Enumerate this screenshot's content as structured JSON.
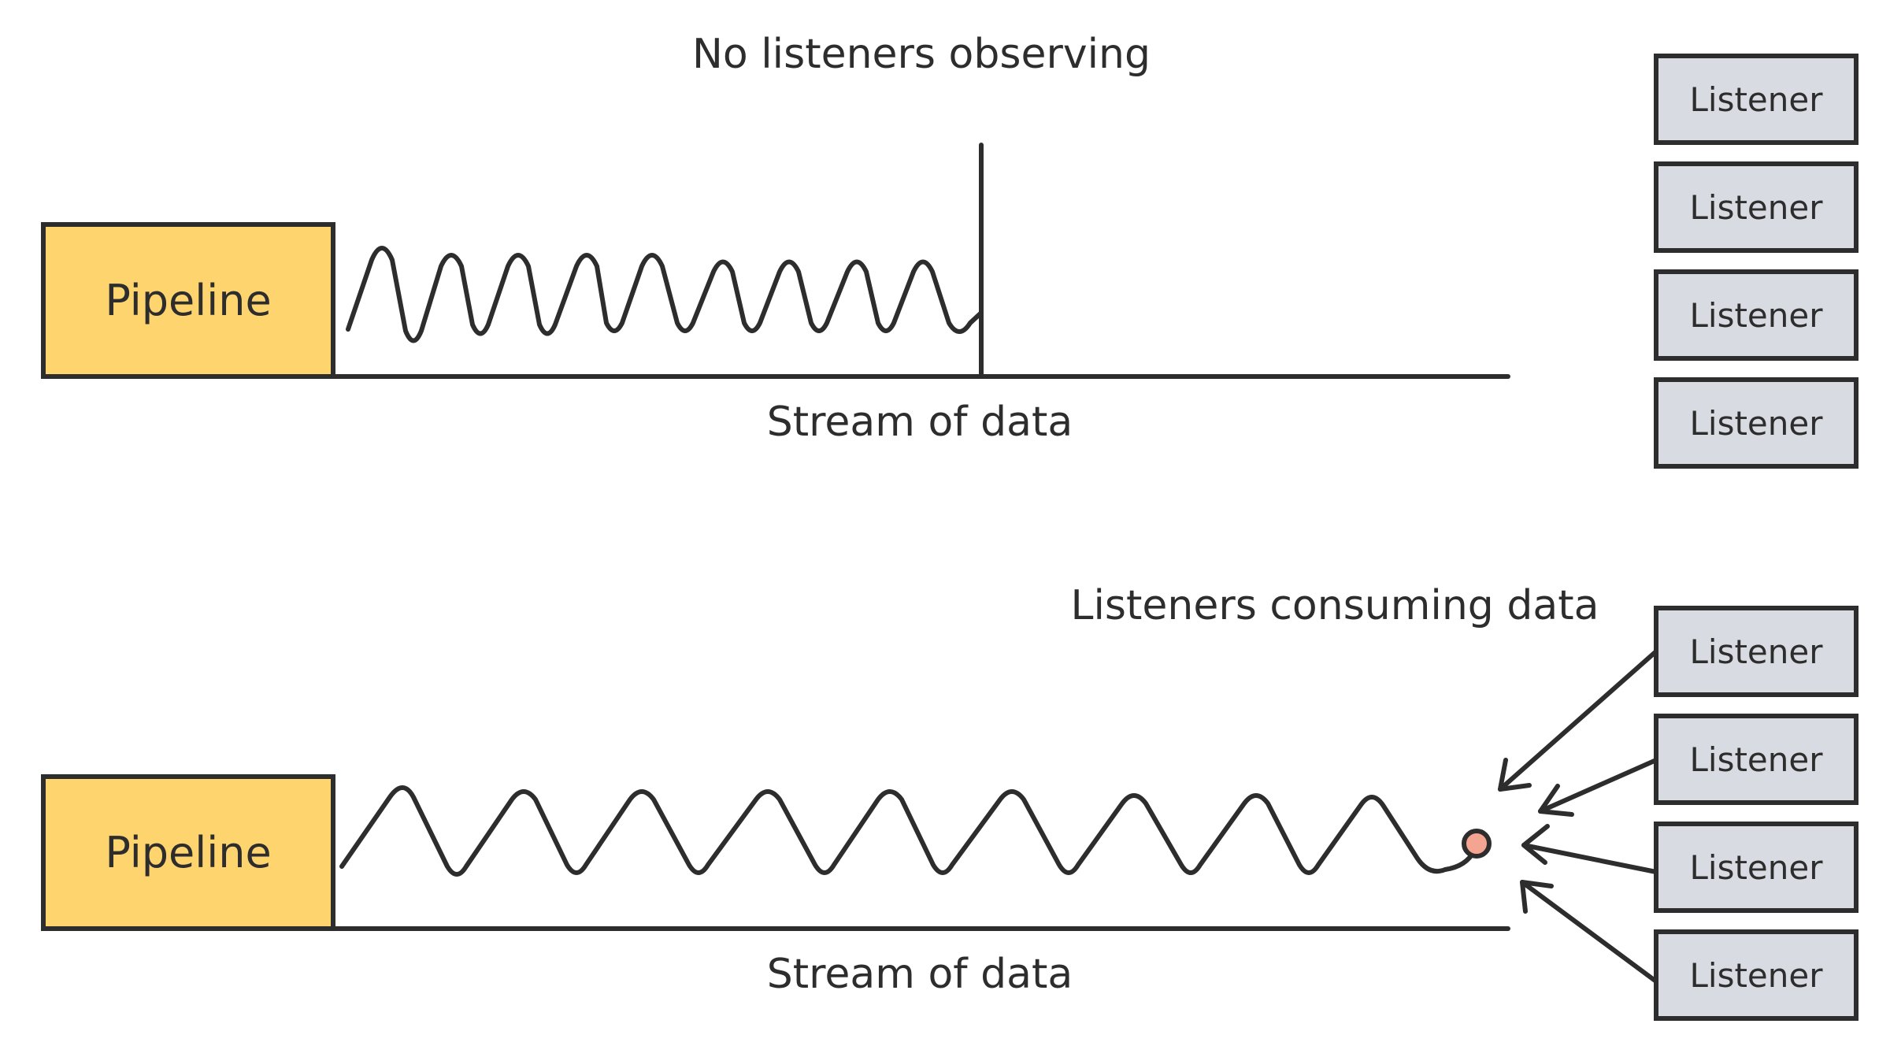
{
  "top_panel": {
    "title": "No listeners observing",
    "pipeline_label": "Pipeline",
    "stream_label": "Stream of data",
    "listeners": [
      "Listener",
      "Listener",
      "Listener",
      "Listener"
    ]
  },
  "bottom_panel": {
    "title": "Listeners consuming data",
    "pipeline_label": "Pipeline",
    "stream_label": "Stream of data",
    "listeners": [
      "Listener",
      "Listener",
      "Listener",
      "Listener"
    ]
  },
  "colors": {
    "pipeline_fill": "#fdd46e",
    "listener_fill": "#d9dbe2",
    "line": "#2d2d2d",
    "data_point": "#f4a592"
  }
}
